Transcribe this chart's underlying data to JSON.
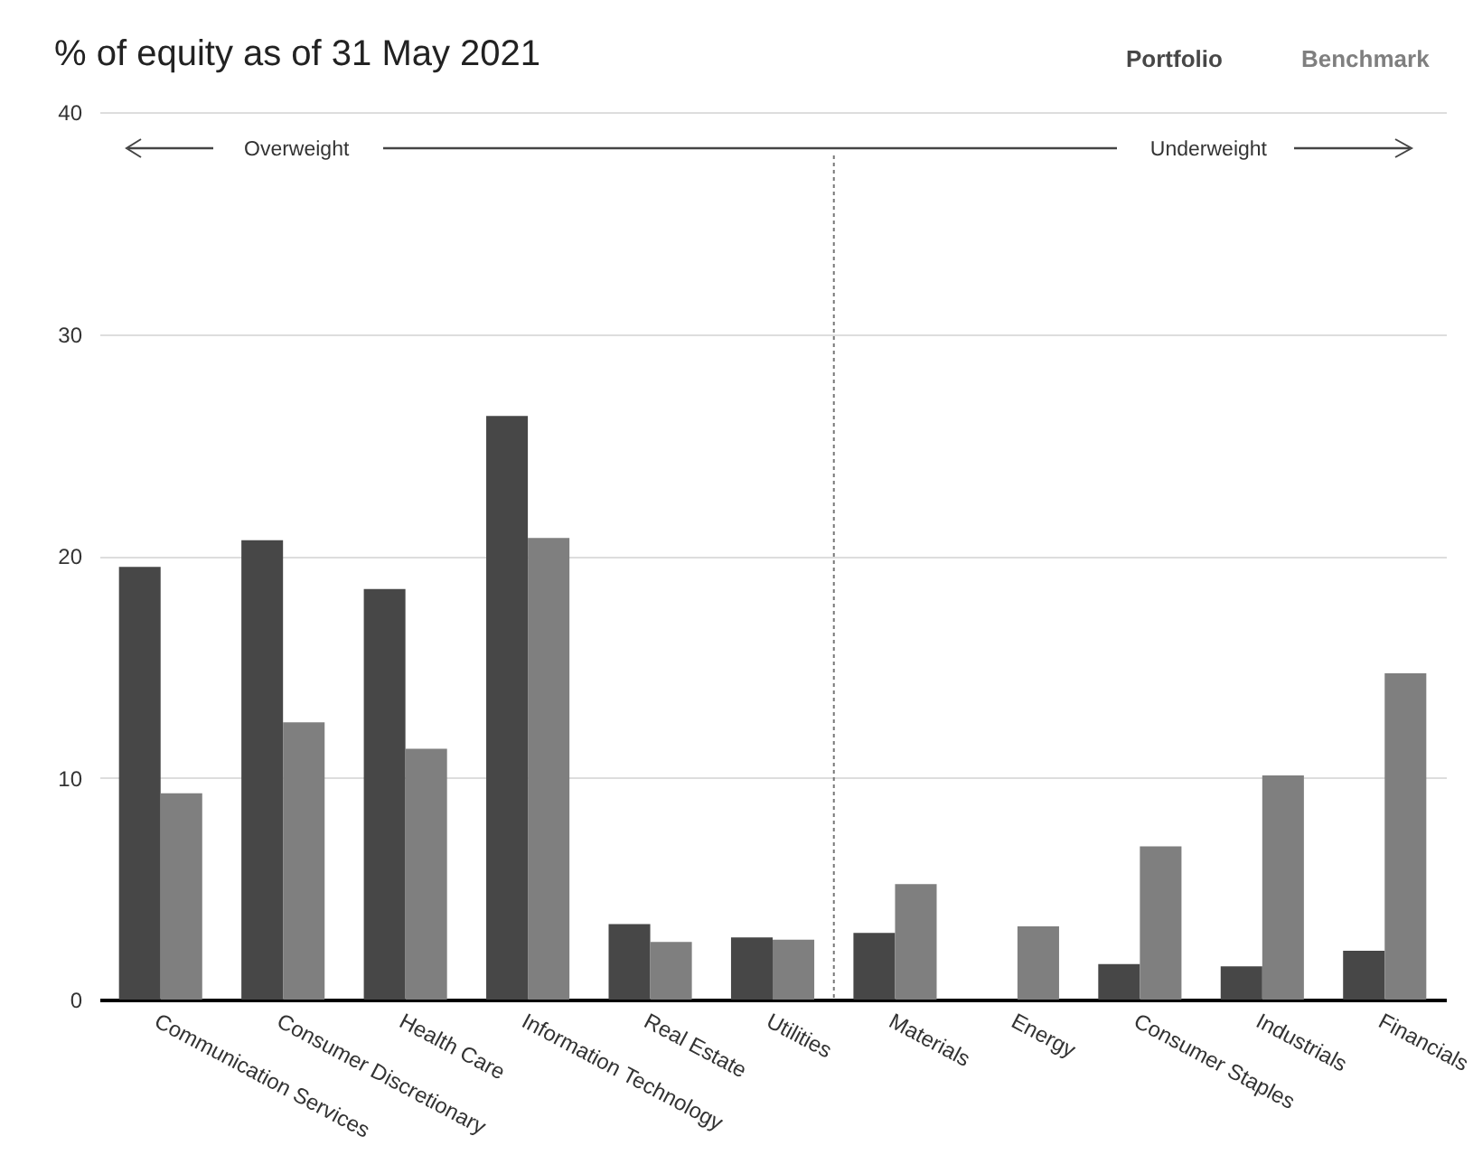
{
  "chart_data": {
    "type": "bar",
    "title": "% of equity as of 31 May 2021",
    "categories": [
      "Communication Services",
      "Consumer Discretionary",
      "Health Care",
      "Information Technology",
      "Real Estate",
      "Utilities",
      "Materials",
      "Energy",
      "Consumer Staples",
      "Industrials",
      "Financials"
    ],
    "series": [
      {
        "name": "Portfolio",
        "color": "#474747",
        "values": [
          19.5,
          20.7,
          18.5,
          26.3,
          3.4,
          2.8,
          3.0,
          0,
          1.6,
          1.5,
          2.2
        ]
      },
      {
        "name": "Benchmark",
        "color": "#7f7f7f",
        "values": [
          9.3,
          12.5,
          11.3,
          20.8,
          2.6,
          2.7,
          5.2,
          3.3,
          6.9,
          10.1,
          14.7
        ]
      }
    ],
    "ylim": [
      0,
      40
    ],
    "yticks": [
      0,
      10,
      20,
      30,
      40
    ],
    "grid": "y",
    "legend": "top right",
    "annotations": [
      "Overweight",
      "Underweight"
    ],
    "ref_lines": [
      {
        "axis": "x",
        "value": "Materials",
        "line_style": "dotted",
        "color": "#777777"
      }
    ]
  }
}
